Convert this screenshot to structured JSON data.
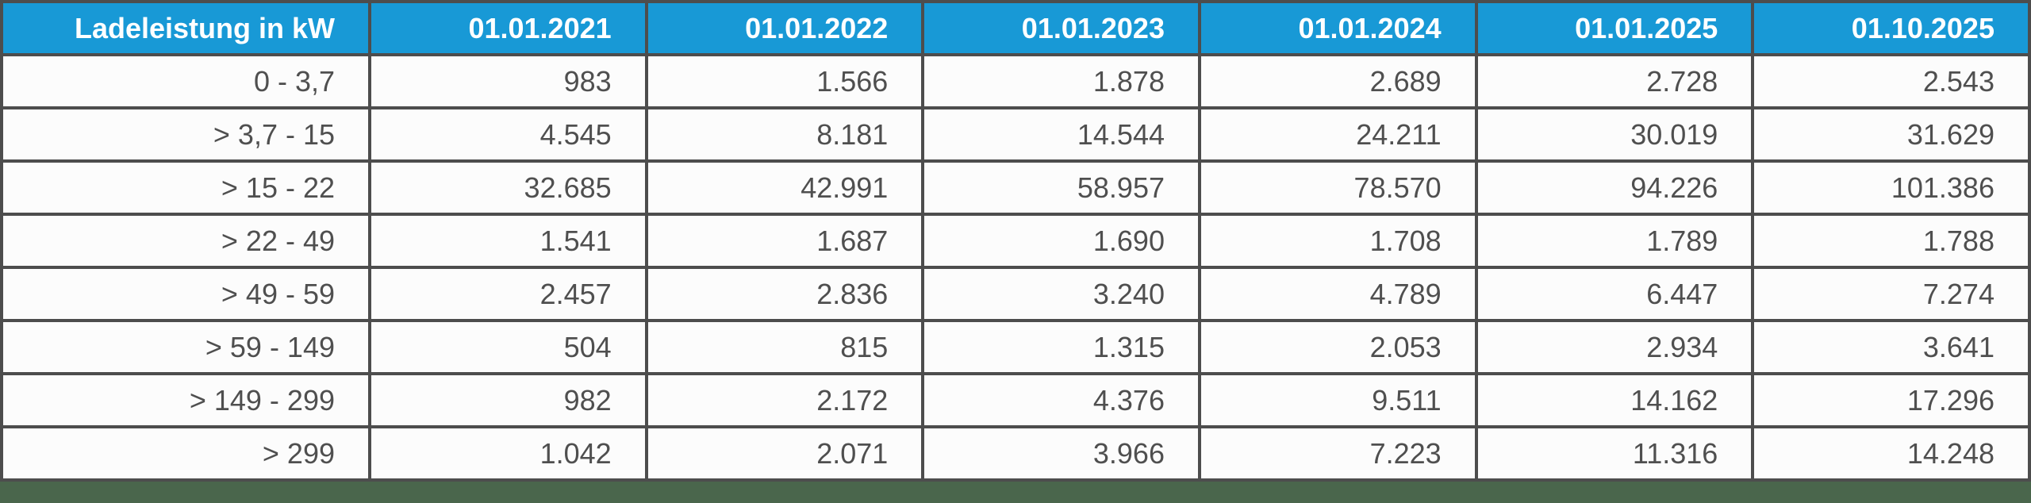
{
  "colors": {
    "header_bg": "#1899d6",
    "header_text": "#ffffff",
    "grid_line": "#4d4d4d",
    "cell_bg": "#fcfcfc",
    "cell_text": "#4f4f4f",
    "footer_bar": "#4a664c"
  },
  "table": {
    "header": [
      "Ladeleistung in kW",
      "01.01.2021",
      "01.01.2022",
      "01.01.2023",
      "01.01.2024",
      "01.01.2025",
      "01.10.2025"
    ],
    "rows": [
      {
        "label": "0 - 3,7",
        "values": [
          "983",
          "1.566",
          "1.878",
          "2.689",
          "2.728",
          "2.543"
        ]
      },
      {
        "label": "> 3,7 - 15",
        "values": [
          "4.545",
          "8.181",
          "14.544",
          "24.211",
          "30.019",
          "31.629"
        ]
      },
      {
        "label": "> 15 - 22",
        "values": [
          "32.685",
          "42.991",
          "58.957",
          "78.570",
          "94.226",
          "101.386"
        ]
      },
      {
        "label": "> 22 - 49",
        "values": [
          "1.541",
          "1.687",
          "1.690",
          "1.708",
          "1.789",
          "1.788"
        ]
      },
      {
        "label": "> 49 - 59",
        "values": [
          "2.457",
          "2.836",
          "3.240",
          "4.789",
          "6.447",
          "7.274"
        ]
      },
      {
        "label": "> 59 - 149",
        "values": [
          "504",
          "815",
          "1.315",
          "2.053",
          "2.934",
          "3.641"
        ]
      },
      {
        "label": "> 149 - 299",
        "values": [
          "982",
          "2.172",
          "4.376",
          "9.511",
          "14.162",
          "17.296"
        ]
      },
      {
        "label": "> 299",
        "values": [
          "1.042",
          "2.071",
          "3.966",
          "7.223",
          "11.316",
          "14.248"
        ]
      }
    ]
  },
  "chart_data": {
    "type": "table",
    "title": "Ladeleistung in kW",
    "categories": [
      "01.01.2021",
      "01.01.2022",
      "01.01.2023",
      "01.01.2024",
      "01.01.2025",
      "01.10.2025"
    ],
    "series": [
      {
        "name": "0 - 3,7",
        "values": [
          983,
          1566,
          1878,
          2689,
          2728,
          2543
        ]
      },
      {
        "name": "> 3,7 - 15",
        "values": [
          4545,
          8181,
          14544,
          24211,
          30019,
          31629
        ]
      },
      {
        "name": "> 15 - 22",
        "values": [
          32685,
          42991,
          58957,
          78570,
          94226,
          101386
        ]
      },
      {
        "name": "> 22 - 49",
        "values": [
          1541,
          1687,
          1690,
          1708,
          1789,
          1788
        ]
      },
      {
        "name": "> 49 - 59",
        "values": [
          2457,
          2836,
          3240,
          4789,
          6447,
          7274
        ]
      },
      {
        "name": "> 59 - 149",
        "values": [
          504,
          815,
          1315,
          2053,
          2934,
          3641
        ]
      },
      {
        "name": "> 149 - 299",
        "values": [
          982,
          2172,
          4376,
          9511,
          14162,
          17296
        ]
      },
      {
        "name": "> 299",
        "values": [
          1042,
          2071,
          3966,
          7223,
          11316,
          14248
        ]
      }
    ]
  }
}
